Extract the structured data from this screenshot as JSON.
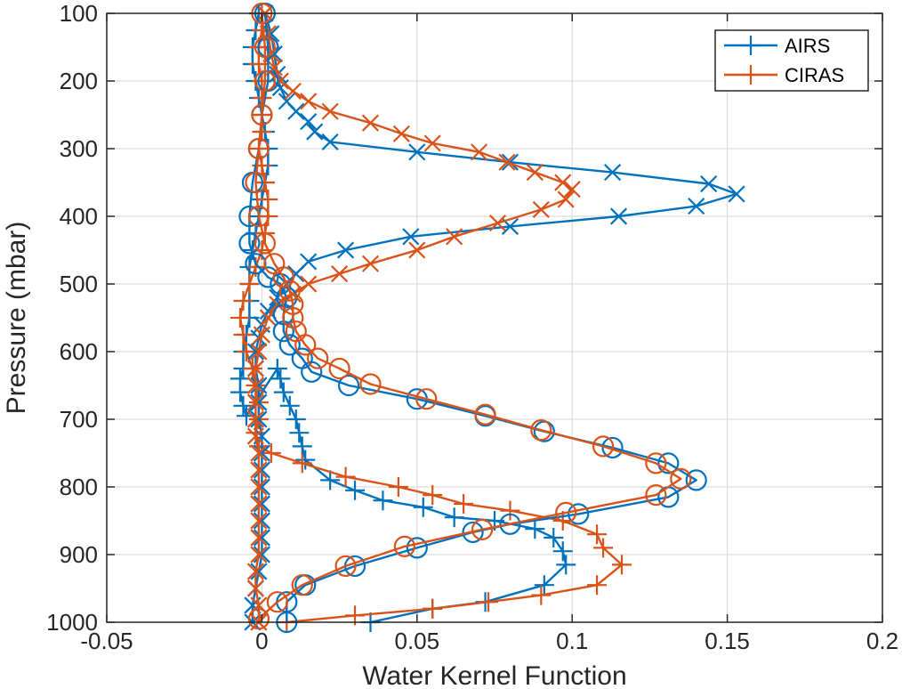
{
  "chart_data": {
    "type": "line",
    "xlabel": "Water Kernel Function",
    "ylabel": "Pressure (mbar)",
    "xlim": [
      -0.05,
      0.2
    ],
    "ylim": [
      100,
      1000
    ],
    "y_reversed": true,
    "grid": true,
    "legend_position": "top-right",
    "x_ticks": [
      -0.05,
      0,
      0.05,
      0.1,
      0.15,
      0.2
    ],
    "x_tick_labels": [
      "-0.05",
      "0",
      "0.05",
      "0.1",
      "0.15",
      "0.2"
    ],
    "y_ticks": [
      100,
      200,
      300,
      400,
      500,
      600,
      700,
      800,
      900,
      1000
    ],
    "y_tick_labels": [
      "100",
      "200",
      "300",
      "400",
      "500",
      "600",
      "700",
      "800",
      "900",
      "1000"
    ],
    "legend": [
      {
        "name": "AIRS",
        "color": "#0072BD",
        "marker": "plus"
      },
      {
        "name": "CIRAS",
        "color": "#D95319",
        "marker": "plus"
      }
    ],
    "series": [
      {
        "name": "AIRS",
        "curve": "low-level",
        "marker": "plus",
        "color": "#0072BD",
        "points": [
          [
            -0.001,
            100
          ],
          [
            -0.002,
            125
          ],
          [
            -0.003,
            150
          ],
          [
            -0.003,
            175
          ],
          [
            -0.002,
            200
          ],
          [
            -0.001,
            225
          ],
          [
            0,
            250
          ],
          [
            0.001,
            275
          ],
          [
            0.002,
            300
          ],
          [
            0.002,
            325
          ],
          [
            0.001,
            350
          ],
          [
            0,
            375
          ],
          [
            -0.001,
            400
          ],
          [
            -0.002,
            425
          ],
          [
            -0.003,
            450
          ],
          [
            -0.004,
            475
          ],
          [
            -0.004,
            500
          ],
          [
            -0.004,
            525
          ],
          [
            -0.004,
            550
          ],
          [
            -0.005,
            575
          ],
          [
            -0.006,
            600
          ],
          [
            -0.006,
            625
          ],
          [
            -0.007,
            640
          ],
          [
            -0.007,
            660
          ],
          [
            -0.006,
            680
          ],
          [
            -0.005,
            695
          ],
          [
            0.005,
            625
          ],
          [
            0.006,
            640
          ],
          [
            0.007,
            660
          ],
          [
            0.009,
            680
          ],
          [
            0.011,
            700
          ],
          [
            0.012,
            720
          ],
          [
            0.013,
            740
          ],
          [
            0.014,
            760
          ],
          [
            0.022,
            790
          ],
          [
            0.03,
            805
          ],
          [
            0.039,
            820
          ],
          [
            0.052,
            830
          ],
          [
            0.062,
            845
          ],
          [
            0.075,
            850
          ],
          [
            0.088,
            862
          ],
          [
            0.094,
            875
          ],
          [
            0.097,
            895
          ],
          [
            0.098,
            915
          ],
          [
            0.091,
            945
          ],
          [
            0.072,
            970
          ],
          [
            0.055,
            980
          ],
          [
            0.035,
            1000
          ]
        ]
      },
      {
        "name": "CIRAS",
        "curve": "low-level",
        "marker": "plus",
        "color": "#D95319",
        "points": [
          [
            0,
            100
          ],
          [
            0,
            125
          ],
          [
            -0.001,
            150
          ],
          [
            -0.001,
            175
          ],
          [
            0,
            200
          ],
          [
            0,
            225
          ],
          [
            0,
            250
          ],
          [
            0,
            275
          ],
          [
            -0.001,
            300
          ],
          [
            0,
            325
          ],
          [
            0.001,
            350
          ],
          [
            0.002,
            375
          ],
          [
            0.002,
            400
          ],
          [
            0.001,
            425
          ],
          [
            0,
            450
          ],
          [
            -0.002,
            475
          ],
          [
            -0.004,
            500
          ],
          [
            -0.006,
            525
          ],
          [
            -0.007,
            550
          ],
          [
            -0.006,
            575
          ],
          [
            -0.005,
            600
          ],
          [
            -0.003,
            625
          ],
          [
            -0.002,
            650
          ],
          [
            -0.001,
            675
          ],
          [
            -0.001,
            700
          ],
          [
            -0.002,
            720
          ],
          [
            -0.001,
            740
          ],
          [
            0.003,
            750
          ],
          [
            0.013,
            765
          ],
          [
            0.027,
            785
          ],
          [
            0.044,
            800
          ],
          [
            0.055,
            812
          ],
          [
            0.065,
            825
          ],
          [
            0.08,
            835
          ],
          [
            0.097,
            850
          ],
          [
            0.108,
            870
          ],
          [
            0.11,
            890
          ],
          [
            0.116,
            915
          ],
          [
            0.108,
            945
          ],
          [
            0.09,
            960
          ],
          [
            0.073,
            970
          ],
          [
            0.055,
            980
          ],
          [
            0.03,
            990
          ],
          [
            0.008,
            1000
          ]
        ]
      },
      {
        "name": "AIRS",
        "curve": "upper-level",
        "marker": "x",
        "color": "#0072BD",
        "points": [
          [
            0.001,
            100
          ],
          [
            0.003,
            130
          ],
          [
            0.004,
            160
          ],
          [
            0.005,
            190
          ],
          [
            0.006,
            210
          ],
          [
            0.008,
            230
          ],
          [
            0.011,
            245
          ],
          [
            0.015,
            260
          ],
          [
            0.017,
            275
          ],
          [
            0.022,
            290
          ],
          [
            0.05,
            305
          ],
          [
            0.08,
            320
          ],
          [
            0.113,
            335
          ],
          [
            0.144,
            352
          ],
          [
            0.153,
            367
          ],
          [
            0.14,
            385
          ],
          [
            0.115,
            400
          ],
          [
            0.08,
            415
          ],
          [
            0.048,
            430
          ],
          [
            0.027,
            450
          ],
          [
            0.015,
            467
          ],
          [
            0.011,
            485
          ],
          [
            0.008,
            500
          ],
          [
            0.005,
            520
          ],
          [
            0.002,
            540
          ],
          [
            0,
            560
          ],
          [
            -0.001,
            580
          ],
          [
            -0.002,
            600
          ],
          [
            -0.002,
            625
          ],
          [
            -0.001,
            650
          ],
          [
            -0.001,
            675
          ],
          [
            -0.001,
            700
          ],
          [
            0,
            725
          ],
          [
            0,
            750
          ],
          [
            0,
            775
          ],
          [
            0,
            800
          ],
          [
            0,
            825
          ],
          [
            0,
            850
          ],
          [
            0,
            875
          ],
          [
            0,
            900
          ],
          [
            -0.001,
            925
          ],
          [
            -0.002,
            950
          ],
          [
            -0.003,
            975
          ],
          [
            -0.003,
            1000
          ]
        ]
      },
      {
        "name": "CIRAS",
        "curve": "upper-level",
        "marker": "x",
        "color": "#D95319",
        "points": [
          [
            0.001,
            100
          ],
          [
            0.002,
            130
          ],
          [
            0.003,
            160
          ],
          [
            0.004,
            180
          ],
          [
            0.006,
            200
          ],
          [
            0.01,
            215
          ],
          [
            0.015,
            230
          ],
          [
            0.022,
            245
          ],
          [
            0.035,
            262
          ],
          [
            0.045,
            278
          ],
          [
            0.055,
            292
          ],
          [
            0.07,
            305
          ],
          [
            0.079,
            320
          ],
          [
            0.088,
            335
          ],
          [
            0.097,
            350
          ],
          [
            0.1,
            360
          ],
          [
            0.098,
            375
          ],
          [
            0.09,
            390
          ],
          [
            0.076,
            410
          ],
          [
            0.062,
            430
          ],
          [
            0.05,
            450
          ],
          [
            0.035,
            470
          ],
          [
            0.025,
            485
          ],
          [
            0.015,
            500
          ],
          [
            0.01,
            515
          ],
          [
            0.005,
            530
          ],
          [
            0.002,
            550
          ],
          [
            0,
            575
          ],
          [
            -0.001,
            600
          ],
          [
            -0.002,
            625
          ],
          [
            -0.002,
            650
          ],
          [
            -0.002,
            675
          ],
          [
            -0.002,
            700
          ],
          [
            -0.002,
            725
          ],
          [
            -0.001,
            750
          ],
          [
            -0.001,
            775
          ],
          [
            -0.001,
            800
          ],
          [
            -0.001,
            825
          ],
          [
            -0.001,
            850
          ],
          [
            -0.001,
            875
          ],
          [
            -0.001,
            900
          ],
          [
            -0.002,
            925
          ],
          [
            -0.002,
            950
          ],
          [
            -0.001,
            975
          ],
          [
            -0.001,
            1000
          ]
        ]
      },
      {
        "name": "AIRS",
        "curve": "mid-level",
        "marker": "circle",
        "color": "#0072BD",
        "points": [
          [
            0.001,
            100
          ],
          [
            0.002,
            150
          ],
          [
            0.002,
            200
          ],
          [
            0,
            250
          ],
          [
            -0.001,
            300
          ],
          [
            -0.003,
            350
          ],
          [
            -0.004,
            400
          ],
          [
            -0.004,
            440
          ],
          [
            -0.002,
            470
          ],
          [
            0.002,
            490
          ],
          [
            0.006,
            500
          ],
          [
            0.008,
            520
          ],
          [
            0.007,
            545
          ],
          [
            0.007,
            570
          ],
          [
            0.009,
            590
          ],
          [
            0.013,
            610
          ],
          [
            0.016,
            630
          ],
          [
            0.028,
            650
          ],
          [
            0.05,
            670
          ],
          [
            0.072,
            695
          ],
          [
            0.091,
            718
          ],
          [
            0.113,
            742
          ],
          [
            0.131,
            765
          ],
          [
            0.14,
            790
          ],
          [
            0.131,
            815
          ],
          [
            0.102,
            840
          ],
          [
            0.08,
            855
          ],
          [
            0.068,
            867
          ],
          [
            0.05,
            890
          ],
          [
            0.03,
            917
          ],
          [
            0.014,
            945
          ],
          [
            0.008,
            970
          ],
          [
            0.008,
            1000
          ]
        ]
      },
      {
        "name": "CIRAS",
        "curve": "mid-level",
        "marker": "circle",
        "color": "#D95319",
        "points": [
          [
            0,
            100
          ],
          [
            0.001,
            150
          ],
          [
            0.001,
            200
          ],
          [
            0,
            250
          ],
          [
            -0.001,
            300
          ],
          [
            -0.002,
            350
          ],
          [
            -0.001,
            400
          ],
          [
            0.001,
            440
          ],
          [
            0.004,
            470
          ],
          [
            0.007,
            490
          ],
          [
            0.009,
            510
          ],
          [
            0.01,
            530
          ],
          [
            0.01,
            550
          ],
          [
            0.011,
            570
          ],
          [
            0.014,
            590
          ],
          [
            0.018,
            610
          ],
          [
            0.025,
            625
          ],
          [
            0.035,
            648
          ],
          [
            0.053,
            670
          ],
          [
            0.072,
            693
          ],
          [
            0.09,
            716
          ],
          [
            0.11,
            740
          ],
          [
            0.127,
            765
          ],
          [
            0.135,
            788
          ],
          [
            0.127,
            812
          ],
          [
            0.098,
            838
          ],
          [
            0.071,
            863
          ],
          [
            0.046,
            888
          ],
          [
            0.027,
            917
          ],
          [
            0.013,
            945
          ],
          [
            0.005,
            970
          ],
          [
            -0.001,
            995
          ]
        ]
      }
    ]
  }
}
